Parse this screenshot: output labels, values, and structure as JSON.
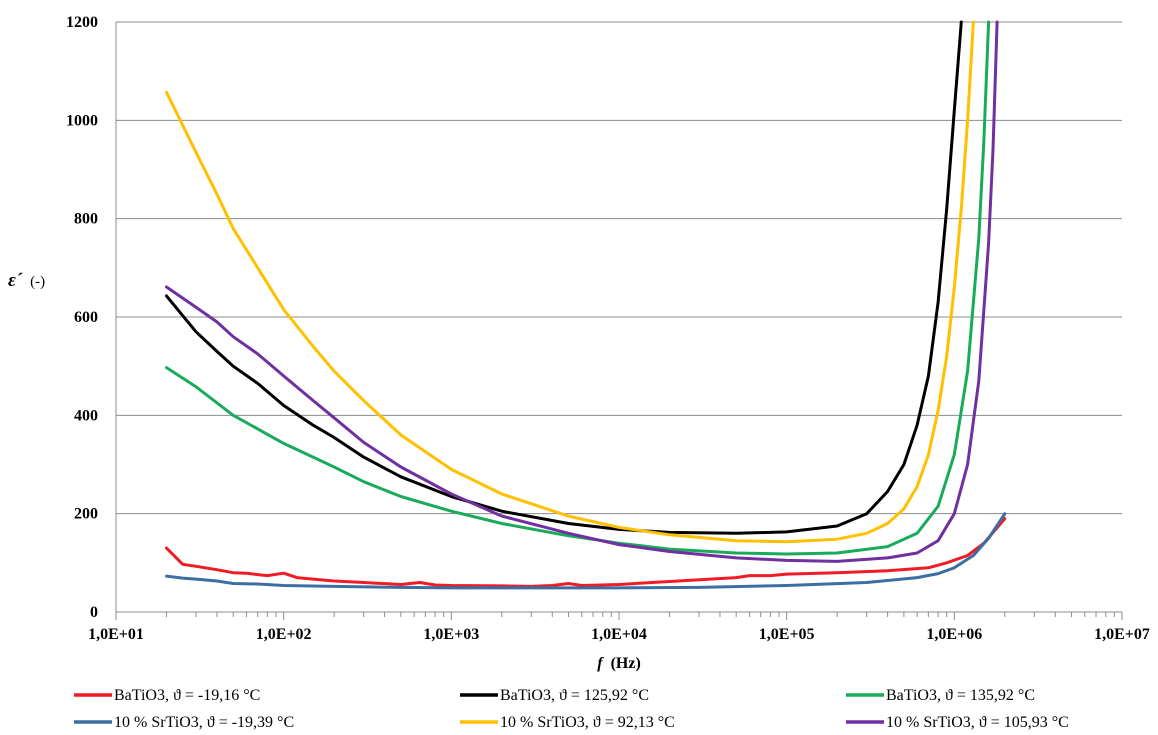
{
  "chart_data": {
    "type": "line",
    "xlabel_italic": "f",
    "xlabel_unit": "(Hz)",
    "ylabel_symbol": "ε´",
    "ylabel_unit": "(-)",
    "x_scale": "log",
    "xlim": [
      10,
      10000000
    ],
    "ylim": [
      0,
      1200
    ],
    "x_tick_labels": [
      "1,0E+01",
      "1,0E+02",
      "1,0E+03",
      "1,0E+04",
      "1,0E+05",
      "1,0E+06",
      "1,0E+07"
    ],
    "x_tick_values": [
      10,
      100,
      1000,
      10000,
      100000,
      1000000,
      10000000
    ],
    "y_ticks": [
      0,
      200,
      400,
      600,
      800,
      1000,
      1200
    ],
    "grid": "horizontal",
    "legend_position": "bottom",
    "series": [
      {
        "name": "BaTiO3,  ϑ = -19,16 °C",
        "color": "#ee1c24",
        "points": [
          [
            20,
            130
          ],
          [
            25,
            97
          ],
          [
            30,
            93
          ],
          [
            40,
            86
          ],
          [
            50,
            80
          ],
          [
            60,
            79
          ],
          [
            70,
            76
          ],
          [
            80,
            74
          ],
          [
            100,
            79
          ],
          [
            120,
            70
          ],
          [
            150,
            67
          ],
          [
            200,
            63
          ],
          [
            300,
            60
          ],
          [
            500,
            56
          ],
          [
            650,
            60
          ],
          [
            800,
            55
          ],
          [
            1000,
            54
          ],
          [
            2000,
            53
          ],
          [
            3000,
            52
          ],
          [
            4000,
            54
          ],
          [
            5000,
            58
          ],
          [
            6000,
            54
          ],
          [
            10000,
            56
          ],
          [
            20000,
            62
          ],
          [
            50000,
            70
          ],
          [
            60000,
            74
          ],
          [
            80000,
            74
          ],
          [
            100000,
            77
          ],
          [
            200000,
            80
          ],
          [
            400000,
            84
          ],
          [
            700000,
            90
          ],
          [
            900000,
            100
          ],
          [
            1200000,
            115
          ],
          [
            1500000,
            140
          ],
          [
            2000000,
            190
          ]
        ]
      },
      {
        "name": "10 % SrTiO3,  ϑ = -19,39 °C",
        "color": "#3c6ea4",
        "points": [
          [
            20,
            73
          ],
          [
            25,
            69
          ],
          [
            30,
            67
          ],
          [
            40,
            63
          ],
          [
            50,
            58
          ],
          [
            70,
            57
          ],
          [
            100,
            54
          ],
          [
            200,
            52
          ],
          [
            500,
            50
          ],
          [
            1000,
            49
          ],
          [
            3000,
            49
          ],
          [
            10000,
            49
          ],
          [
            30000,
            50
          ],
          [
            100000,
            54
          ],
          [
            300000,
            60
          ],
          [
            600000,
            70
          ],
          [
            800000,
            78
          ],
          [
            1000000,
            90
          ],
          [
            1300000,
            115
          ],
          [
            1600000,
            150
          ],
          [
            2000000,
            200
          ]
        ]
      },
      {
        "name": "BaTiO3,  ϑ = 125,92 °C",
        "color": "#000000",
        "points": [
          [
            20,
            643
          ],
          [
            30,
            570
          ],
          [
            40,
            530
          ],
          [
            50,
            500
          ],
          [
            70,
            465
          ],
          [
            100,
            420
          ],
          [
            150,
            380
          ],
          [
            200,
            355
          ],
          [
            300,
            315
          ],
          [
            500,
            275
          ],
          [
            1000,
            235
          ],
          [
            2000,
            205
          ],
          [
            5000,
            180
          ],
          [
            10000,
            168
          ],
          [
            20000,
            162
          ],
          [
            50000,
            160
          ],
          [
            100000,
            163
          ],
          [
            200000,
            175
          ],
          [
            300000,
            200
          ],
          [
            400000,
            245
          ],
          [
            500000,
            300
          ],
          [
            600000,
            380
          ],
          [
            700000,
            480
          ],
          [
            800000,
            630
          ],
          [
            900000,
            820
          ],
          [
            1000000,
            1020
          ],
          [
            1100000,
            1200
          ]
        ]
      },
      {
        "name": "10 % SrTiO3,  ϑ = 92,13 °C",
        "color": "#ffc000",
        "points": [
          [
            20,
            1057
          ],
          [
            25,
            990
          ],
          [
            30,
            935
          ],
          [
            40,
            850
          ],
          [
            50,
            780
          ],
          [
            70,
            700
          ],
          [
            100,
            615
          ],
          [
            150,
            540
          ],
          [
            200,
            490
          ],
          [
            300,
            430
          ],
          [
            500,
            360
          ],
          [
            1000,
            290
          ],
          [
            2000,
            240
          ],
          [
            5000,
            195
          ],
          [
            10000,
            172
          ],
          [
            20000,
            157
          ],
          [
            50000,
            145
          ],
          [
            100000,
            143
          ],
          [
            200000,
            148
          ],
          [
            300000,
            160
          ],
          [
            400000,
            180
          ],
          [
            500000,
            210
          ],
          [
            600000,
            255
          ],
          [
            700000,
            320
          ],
          [
            800000,
            410
          ],
          [
            900000,
            520
          ],
          [
            1000000,
            660
          ],
          [
            1100000,
            820
          ],
          [
            1200000,
            1000
          ],
          [
            1300000,
            1200
          ]
        ]
      },
      {
        "name": "BaTiO3,  ϑ = 135,92 °C",
        "color": "#1aab5a",
        "points": [
          [
            20,
            497
          ],
          [
            30,
            458
          ],
          [
            50,
            400
          ],
          [
            100,
            343
          ],
          [
            200,
            295
          ],
          [
            300,
            265
          ],
          [
            500,
            235
          ],
          [
            1000,
            205
          ],
          [
            2000,
            180
          ],
          [
            5000,
            155
          ],
          [
            10000,
            140
          ],
          [
            20000,
            128
          ],
          [
            50000,
            120
          ],
          [
            100000,
            118
          ],
          [
            200000,
            120
          ],
          [
            400000,
            133
          ],
          [
            600000,
            160
          ],
          [
            800000,
            215
          ],
          [
            1000000,
            320
          ],
          [
            1200000,
            490
          ],
          [
            1400000,
            760
          ],
          [
            1500000,
            960
          ],
          [
            1600000,
            1200
          ]
        ]
      },
      {
        "name": "10 % SrTiO3,  ϑ = 105,93 °C",
        "color": "#7030a0",
        "points": [
          [
            20,
            661
          ],
          [
            30,
            620
          ],
          [
            40,
            590
          ],
          [
            50,
            560
          ],
          [
            70,
            525
          ],
          [
            100,
            480
          ],
          [
            150,
            430
          ],
          [
            200,
            395
          ],
          [
            300,
            345
          ],
          [
            500,
            295
          ],
          [
            1000,
            240
          ],
          [
            2000,
            195
          ],
          [
            5000,
            160
          ],
          [
            10000,
            137
          ],
          [
            20000,
            123
          ],
          [
            50000,
            110
          ],
          [
            100000,
            105
          ],
          [
            200000,
            103
          ],
          [
            400000,
            110
          ],
          [
            600000,
            120
          ],
          [
            800000,
            145
          ],
          [
            1000000,
            200
          ],
          [
            1200000,
            300
          ],
          [
            1400000,
            470
          ],
          [
            1600000,
            750
          ],
          [
            1700000,
            940
          ],
          [
            1800000,
            1200
          ]
        ]
      }
    ]
  }
}
